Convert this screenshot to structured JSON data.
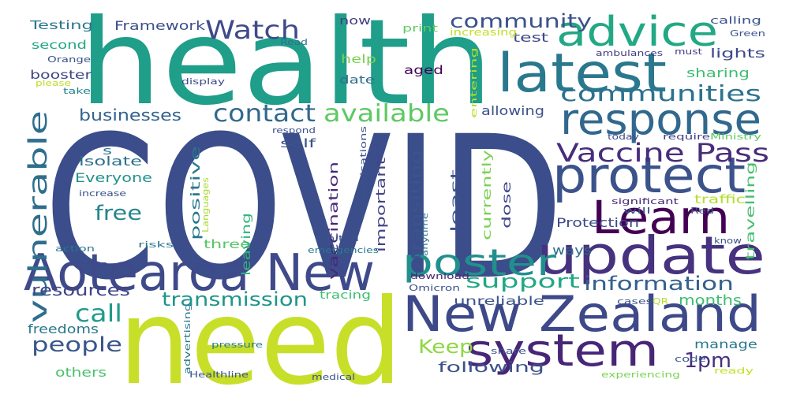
{
  "word_cloud": {
    "background": "#ffffff",
    "words": [
      {
        "text": "COVID",
        "color": "#3b4d8a"
      },
      {
        "text": "health",
        "color": "#1f9e89"
      },
      {
        "text": "need",
        "color": "#c8df2a"
      },
      {
        "text": "advice",
        "color": "#22a884"
      },
      {
        "text": "latest",
        "color": "#2a788e"
      },
      {
        "text": "response",
        "color": "#31688e"
      },
      {
        "text": "protect",
        "color": "#3b528b"
      },
      {
        "text": "Learn",
        "color": "#440154"
      },
      {
        "text": "update",
        "color": "#46327e"
      },
      {
        "text": "New Zealand",
        "color": "#3e4989"
      },
      {
        "text": "system",
        "color": "#482677"
      },
      {
        "text": "Aotearoa New",
        "color": "#3f4a8a"
      },
      {
        "text": "poster",
        "color": "#21908d"
      },
      {
        "text": "Vaccine Pass",
        "color": "#472d7b"
      },
      {
        "text": "available",
        "color": "#5ec962"
      },
      {
        "text": "communities",
        "color": "#2c728e"
      },
      {
        "text": "contact",
        "color": "#31688e"
      },
      {
        "text": "community",
        "color": "#3b528b"
      },
      {
        "text": "Watch",
        "color": "#3e4a89"
      },
      {
        "text": "vulnerable",
        "color": "#2e6e8e"
      },
      {
        "text": "businesses",
        "color": "#33638d"
      },
      {
        "text": "free",
        "color": "#25858e"
      },
      {
        "text": "support",
        "color": "#22a785"
      },
      {
        "text": "information",
        "color": "#34618d"
      },
      {
        "text": "transmission",
        "color": "#1f968b"
      },
      {
        "text": "resources",
        "color": "#414487"
      },
      {
        "text": "call",
        "color": "#1e9b8a"
      },
      {
        "text": "people",
        "color": "#39568c"
      },
      {
        "text": "Keep",
        "color": "#8fd744"
      },
      {
        "text": "1pm",
        "color": "#472f7d"
      },
      {
        "text": "months",
        "color": "#3fbc73"
      },
      {
        "text": "following",
        "color": "#3b528b"
      },
      {
        "text": "freedoms",
        "color": "#2a788e"
      },
      {
        "text": "others",
        "color": "#4ac16d"
      },
      {
        "text": "Testing",
        "color": "#2a788e"
      },
      {
        "text": "Framework",
        "color": "#3d4e8a"
      },
      {
        "text": "second",
        "color": "#22a884"
      },
      {
        "text": "booster",
        "color": "#404688"
      },
      {
        "text": "Everyone",
        "color": "#21918c"
      },
      {
        "text": "isolate",
        "color": "#2d708e"
      },
      {
        "text": "positive",
        "color": "#2a788e"
      },
      {
        "text": "self",
        "color": "#3b528b"
      },
      {
        "text": "vaccination",
        "color": "#482878"
      },
      {
        "text": "important",
        "color": "#414487"
      },
      {
        "text": "transiting",
        "color": "#39568c"
      },
      {
        "text": "least",
        "color": "#3b528b"
      },
      {
        "text": "currently",
        "color": "#7ad151"
      },
      {
        "text": "dose",
        "color": "#404688"
      },
      {
        "text": "Protection",
        "color": "#3e4989"
      },
      {
        "text": "ways",
        "color": "#2f6b8e"
      },
      {
        "text": "allowing",
        "color": "#3b528b"
      },
      {
        "text": "sharing",
        "color": "#3fbc73"
      },
      {
        "text": "lights",
        "color": "#3e4989"
      },
      {
        "text": "test",
        "color": "#3e4989"
      },
      {
        "text": "help",
        "color": "#7ad151"
      },
      {
        "text": "aged",
        "color": "#440154"
      },
      {
        "text": "date",
        "color": "#2e6f8e"
      },
      {
        "text": "now",
        "color": "#433e85"
      },
      {
        "text": "three",
        "color": "#56c667"
      },
      {
        "text": "leaving",
        "color": "#2fb47c"
      },
      {
        "text": "tracing",
        "color": "#3fbc73"
      },
      {
        "text": "unreliable",
        "color": "#3b528b"
      },
      {
        "text": "manage",
        "color": "#2a788e"
      },
      {
        "text": "traffic",
        "color": "#b5de2b"
      },
      {
        "text": "travelling",
        "color": "#46c06f"
      },
      {
        "text": "print",
        "color": "#5ec962"
      },
      {
        "text": "increasing",
        "color": "#c2df23"
      },
      {
        "text": "ambulances",
        "color": "#433e85"
      },
      {
        "text": "must",
        "color": "#433e85"
      },
      {
        "text": "calling",
        "color": "#3b528b"
      },
      {
        "text": "Green",
        "color": "#3b528b"
      },
      {
        "text": "Read",
        "color": "#2c728e"
      },
      {
        "text": "Orange",
        "color": "#3b528b"
      },
      {
        "text": "please",
        "color": "#bddf26"
      },
      {
        "text": "take",
        "color": "#26828e"
      },
      {
        "text": "display",
        "color": "#3e4989"
      },
      {
        "text": "entering",
        "color": "#b8de29"
      },
      {
        "text": "today",
        "color": "#3e4989"
      },
      {
        "text": "Ministry",
        "color": "#5ec962"
      },
      {
        "text": "require",
        "color": "#433e85"
      },
      {
        "text": "respond",
        "color": "#3b528b"
      },
      {
        "text": "organisations",
        "color": "#3b528b"
      },
      {
        "text": "anytime",
        "color": "#2a788e"
      },
      {
        "text": "Languages",
        "color": "#a8db34"
      },
      {
        "text": "increase",
        "color": "#3b528b"
      },
      {
        "text": "s",
        "color": "#2a788e"
      },
      {
        "text": "significant",
        "color": "#482878"
      },
      {
        "text": "will",
        "color": "#3b528b"
      },
      {
        "text": "Red",
        "color": "#3b528b"
      },
      {
        "text": "know",
        "color": "#3b528b"
      },
      {
        "text": "action",
        "color": "#2a788e"
      },
      {
        "text": "risks",
        "color": "#2a788e"
      },
      {
        "text": "limited",
        "color": "#3b528b"
      },
      {
        "text": "emergencies",
        "color": "#2a788e"
      },
      {
        "text": "download",
        "color": "#482878"
      },
      {
        "text": "Omicron",
        "color": "#3b528b"
      },
      {
        "text": "cases",
        "color": "#3b528b"
      },
      {
        "text": "QR",
        "color": "#b5de2b"
      },
      {
        "text": "code",
        "color": "#3b528b"
      },
      {
        "text": "ready",
        "color": "#c2df23"
      },
      {
        "text": "advertising",
        "color": "#2a788e"
      },
      {
        "text": "pressure",
        "color": "#2a788e"
      },
      {
        "text": "share",
        "color": "#3b528b"
      },
      {
        "text": "Healthline",
        "color": "#3b528b"
      },
      {
        "text": "medical",
        "color": "#3b528b"
      },
      {
        "text": "experiencing",
        "color": "#7ad151"
      }
    ]
  }
}
